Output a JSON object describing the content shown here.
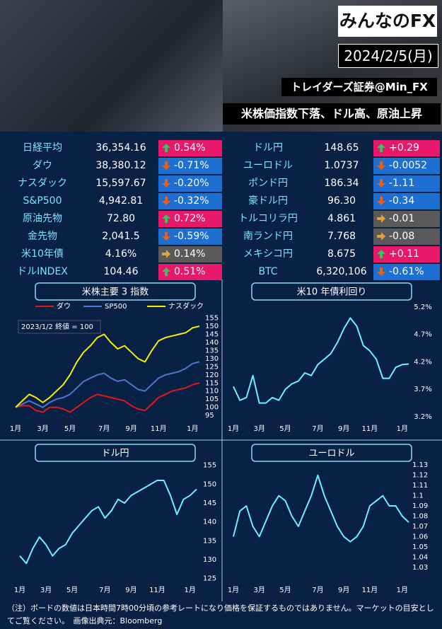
{
  "header": {
    "logo": "みんなのFX",
    "date": "2024/2/5(月)",
    "account": "トレイダーズ証券@Min_FX",
    "headline": "米株価指数下落、ドル高、原油上昇"
  },
  "table": {
    "left": [
      {
        "name": "日経平均",
        "value": "36,354.16",
        "change": "0.54%",
        "trend": "up"
      },
      {
        "name": "ダウ",
        "value": "38,380.12",
        "change": "-0.71%",
        "trend": "down"
      },
      {
        "name": "ナスダック",
        "value": "15,597.67",
        "change": "-0.20%",
        "trend": "down"
      },
      {
        "name": "S&P500",
        "value": "4,942.81",
        "change": "-0.32%",
        "trend": "down"
      },
      {
        "name": "原油先物",
        "value": "72.80",
        "change": "0.72%",
        "trend": "up"
      },
      {
        "name": "金先物",
        "value": "2,041.5",
        "change": "-0.59%",
        "trend": "down"
      },
      {
        "name": "米10年債",
        "value": "4.16%",
        "change": "0.14%",
        "trend": "flat"
      },
      {
        "name": "ドルINDEX",
        "value": "104.46",
        "change": "0.51%",
        "trend": "up"
      }
    ],
    "right": [
      {
        "name": "ドル円",
        "value": "148.65",
        "change": "+0.29",
        "trend": "up"
      },
      {
        "name": "ユーロドル",
        "value": "1.0737",
        "change": "-0.0052",
        "trend": "down"
      },
      {
        "name": "ポンド円",
        "value": "186.34",
        "change": "-1.11",
        "trend": "down"
      },
      {
        "name": "豪ドル円",
        "value": "96.30",
        "change": "-0.34",
        "trend": "down"
      },
      {
        "name": "トルコリラ円",
        "value": "4.861",
        "change": "-0.01",
        "trend": "flat"
      },
      {
        "name": "南ランド円",
        "value": "7.768",
        "change": "-0.08",
        "trend": "flat"
      },
      {
        "name": "メキシコ円",
        "value": "8.675",
        "change": "+0.11",
        "trend": "up"
      },
      {
        "name": "BTC",
        "value": "6,320,106",
        "change": "-0.61%",
        "trend": "down"
      }
    ]
  },
  "chart_data": [
    {
      "type": "line",
      "title": "米株主要 3 指数",
      "annotation": "2023/1/2 終値 = 100",
      "categories": [
        "1月",
        null,
        null,
        null,
        "3月",
        null,
        null,
        null,
        "5月",
        null,
        null,
        null,
        null,
        "7月",
        null,
        null,
        null,
        "9月",
        null,
        null,
        null,
        "11月",
        null,
        null,
        null,
        null,
        "1月",
        null
      ],
      "series": [
        {
          "name": "ダウ",
          "color": "#e01818",
          "values": [
            100,
            101,
            101,
            98,
            97,
            100,
            100,
            99,
            97,
            100,
            103,
            106,
            108,
            107,
            106,
            105,
            104,
            101,
            99,
            98,
            102,
            106,
            108,
            110,
            111,
            112,
            114,
            115
          ]
        },
        {
          "name": "SP500",
          "color": "#4a78d0",
          "values": [
            100,
            102,
            104,
            102,
            100,
            103,
            105,
            106,
            108,
            112,
            116,
            118,
            120,
            121,
            118,
            116,
            117,
            114,
            111,
            110,
            114,
            118,
            120,
            121,
            122,
            124,
            127,
            128
          ]
        },
        {
          "name": "ナスダック",
          "color": "#f5f000",
          "values": [
            100,
            104,
            108,
            106,
            103,
            106,
            110,
            114,
            120,
            128,
            134,
            138,
            143,
            145,
            140,
            136,
            138,
            134,
            130,
            128,
            135,
            141,
            143,
            144,
            145,
            146,
            149,
            150
          ]
        }
      ],
      "ylim": [
        92,
        157
      ],
      "yticks": [
        95,
        100,
        105,
        110,
        115,
        120,
        125,
        130,
        135,
        140,
        145,
        150,
        155
      ]
    },
    {
      "type": "line",
      "title": "米10 年債利回り",
      "color": "#6ff0ff",
      "categories": [
        "1月",
        null,
        null,
        null,
        "3月",
        null,
        null,
        null,
        "5月",
        null,
        null,
        null,
        null,
        "7月",
        null,
        null,
        null,
        "9月",
        null,
        null,
        null,
        "11月",
        null,
        null,
        null,
        null,
        "1月",
        null
      ],
      "values": [
        3.75,
        3.5,
        3.55,
        3.95,
        3.45,
        3.45,
        3.55,
        3.5,
        3.7,
        3.8,
        3.85,
        4.0,
        3.95,
        4.15,
        4.25,
        4.35,
        4.55,
        4.8,
        5.0,
        4.85,
        4.5,
        4.4,
        4.25,
        3.9,
        3.9,
        4.1,
        4.15,
        4.16
      ],
      "ylim": [
        3.2,
        5.25
      ],
      "yticks": [
        {
          "value": 3.2,
          "label": "3.2%"
        },
        {
          "value": 3.7,
          "label": "3.7%"
        },
        {
          "value": 4.2,
          "label": "4.2%"
        },
        {
          "value": 4.7,
          "label": "4.7%"
        },
        {
          "value": 5.2,
          "label": "5.2%"
        }
      ]
    },
    {
      "type": "line",
      "title": "ドル円",
      "color": "#6ff0ff",
      "categories": [
        "1月",
        null,
        null,
        null,
        "3月",
        null,
        null,
        null,
        "5月",
        null,
        null,
        null,
        null,
        "7月",
        null,
        null,
        null,
        "9月",
        null,
        null,
        null,
        "11月",
        null,
        null,
        null,
        null,
        "1月",
        null
      ],
      "values": [
        131,
        129,
        133,
        136,
        134,
        131,
        133,
        134,
        137,
        139,
        141,
        143,
        144,
        141,
        143,
        146,
        145,
        147,
        148,
        149,
        150,
        151,
        151,
        147,
        142,
        146,
        147,
        148.65
      ],
      "ylim": [
        124,
        157
      ],
      "yticks": [
        125,
        130,
        135,
        140,
        145,
        150,
        155
      ]
    },
    {
      "type": "line",
      "title": "ユーロドル",
      "color": "#6ff0ff",
      "categories": [
        "1月",
        null,
        null,
        null,
        "3月",
        null,
        null,
        null,
        "5月",
        null,
        null,
        null,
        null,
        "7月",
        null,
        null,
        null,
        "9月",
        null,
        null,
        null,
        "11月",
        null,
        null,
        null,
        null,
        "1月",
        null
      ],
      "values": [
        1.06,
        1.085,
        1.09,
        1.07,
        1.06,
        1.075,
        1.09,
        1.1,
        1.095,
        1.08,
        1.07,
        1.085,
        1.1,
        1.12,
        1.1,
        1.085,
        1.07,
        1.06,
        1.055,
        1.06,
        1.07,
        1.09,
        1.095,
        1.1,
        1.09,
        1.09,
        1.08,
        1.074
      ],
      "ylim": [
        1.025,
        1.135
      ],
      "yticks": [
        1.03,
        1.04,
        1.05,
        1.06,
        1.07,
        1.08,
        1.09,
        1.1,
        1.11,
        1.12,
        1.13
      ]
    }
  ],
  "footer": "（注）ボードの数値は日本時間7時00分頃の参考レートになり価格を保証するものではありません。マーケットの目安としてご覧ください。　画像出典元：Bloomberg"
}
